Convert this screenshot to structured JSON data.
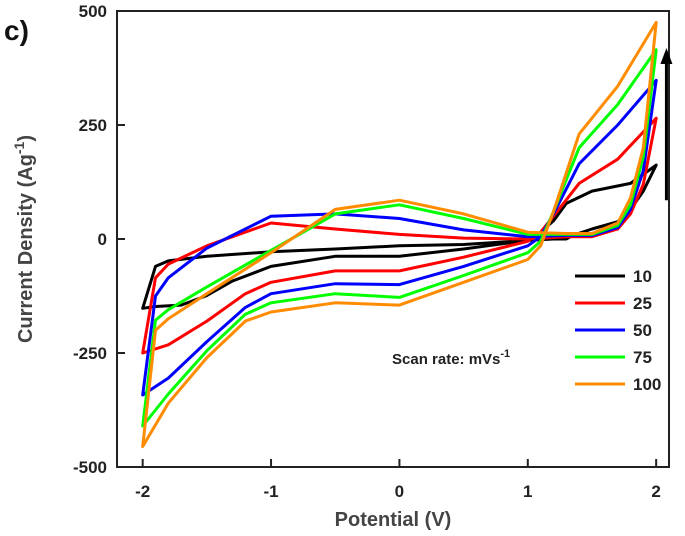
{
  "panel_label": "c)",
  "chart_data": {
    "type": "line",
    "title": "",
    "xlabel": "Potential (V)",
    "ylabel": "Current Density (Ag",
    "ylabel_sup": "-1",
    "ylabel_close": ")",
    "xlim": [
      -2.2,
      2.1
    ],
    "ylim": [
      -500,
      500
    ],
    "x_ticks": [
      -2,
      -1,
      0,
      1,
      2
    ],
    "x_tick_labels": [
      "-2",
      "-1",
      "0",
      "1",
      "2"
    ],
    "y_ticks": [
      -500,
      -250,
      0,
      250,
      500
    ],
    "y_tick_labels": [
      "-500",
      "-250",
      "0",
      "250",
      "500"
    ],
    "grid": false,
    "legend_position": "right",
    "annotation": {
      "text": "Scan rate: mVs",
      "sup": "-1"
    },
    "arrow": {
      "x": 2.08,
      "y_from": 85,
      "y_to": 410,
      "color": "#000000"
    },
    "series": [
      {
        "name": "10",
        "color": "#000000",
        "x": [
          -2.0,
          -1.9,
          -1.7,
          -1.5,
          -1.3,
          -1.0,
          -0.5,
          0.0,
          0.5,
          1.0,
          1.1,
          1.2,
          1.3,
          1.5,
          1.8,
          2.0,
          1.9,
          1.8,
          1.7,
          1.5,
          1.35,
          1.3,
          1.2,
          1.0,
          0.5,
          0.0,
          -0.5,
          -1.0,
          -1.5,
          -1.8,
          -1.9,
          -2.0
        ],
        "y": [
          -152,
          -148,
          -145,
          -124,
          -92,
          -60,
          -38,
          -38,
          -22,
          -3,
          15,
          40,
          78,
          105,
          122,
          162,
          105,
          65,
          38,
          22,
          8,
          0,
          0,
          -3,
          -12,
          -15,
          -22,
          -28,
          -38,
          -48,
          -60,
          -152
        ]
      },
      {
        "name": "25",
        "color": "#ff0000",
        "x": [
          -2.0,
          -1.8,
          -1.5,
          -1.2,
          -1.0,
          -0.5,
          0.0,
          0.5,
          1.0,
          1.1,
          1.2,
          1.4,
          1.7,
          2.0,
          1.9,
          1.8,
          1.7,
          1.5,
          1.3,
          1.0,
          0.5,
          0.0,
          -0.5,
          -1.0,
          -1.5,
          -1.8,
          -1.9,
          -2.0
        ],
        "y": [
          -250,
          -232,
          -180,
          -120,
          -95,
          -70,
          -70,
          -40,
          -5,
          15,
          50,
          122,
          175,
          265,
          120,
          55,
          22,
          5,
          5,
          0,
          2,
          10,
          22,
          35,
          -15,
          -55,
          -85,
          -250
        ]
      },
      {
        "name": "50",
        "color": "#0000ff",
        "x": [
          -2.0,
          -1.8,
          -1.5,
          -1.2,
          -1.0,
          -0.5,
          0.0,
          0.5,
          1.0,
          1.1,
          1.2,
          1.4,
          1.7,
          2.0,
          1.9,
          1.8,
          1.7,
          1.5,
          1.3,
          1.0,
          0.5,
          0.0,
          -0.5,
          -1.0,
          -1.5,
          -1.8,
          -1.9,
          -2.0
        ],
        "y": [
          -342,
          -305,
          -225,
          -150,
          -120,
          -98,
          -100,
          -60,
          -15,
          5,
          55,
          165,
          250,
          348,
          150,
          65,
          25,
          8,
          8,
          5,
          20,
          45,
          55,
          50,
          -20,
          -85,
          -125,
          -342
        ]
      },
      {
        "name": "75",
        "color": "#00ff00",
        "x": [
          -2.0,
          -1.8,
          -1.5,
          -1.2,
          -1.0,
          -0.5,
          0.0,
          0.5,
          1.0,
          1.1,
          1.2,
          1.4,
          1.7,
          2.0,
          1.9,
          1.8,
          1.7,
          1.5,
          1.3,
          1.0,
          0.5,
          0.0,
          -0.5,
          -1.0,
          -1.5,
          -1.8,
          -1.9,
          -2.0
        ],
        "y": [
          -410,
          -340,
          -245,
          -165,
          -140,
          -120,
          -128,
          -80,
          -30,
          -5,
          60,
          200,
          295,
          415,
          180,
          75,
          30,
          10,
          10,
          10,
          45,
          75,
          55,
          -25,
          -105,
          -155,
          -178,
          -410
        ]
      },
      {
        "name": "100",
        "color": "#ff8c00",
        "x": [
          -2.0,
          -1.8,
          -1.5,
          -1.2,
          -1.0,
          -0.5,
          0.0,
          0.5,
          1.0,
          1.1,
          1.2,
          1.4,
          1.7,
          2.0,
          1.9,
          1.8,
          1.7,
          1.5,
          1.3,
          1.0,
          0.5,
          0.0,
          -0.5,
          -1.0,
          -1.5,
          -1.8,
          -1.9,
          -2.0
        ],
        "y": [
          -455,
          -360,
          -260,
          -180,
          -160,
          -140,
          -145,
          -95,
          -45,
          -15,
          60,
          230,
          335,
          475,
          200,
          90,
          35,
          12,
          12,
          15,
          55,
          85,
          65,
          -30,
          -120,
          -175,
          -200,
          -455
        ]
      }
    ]
  }
}
